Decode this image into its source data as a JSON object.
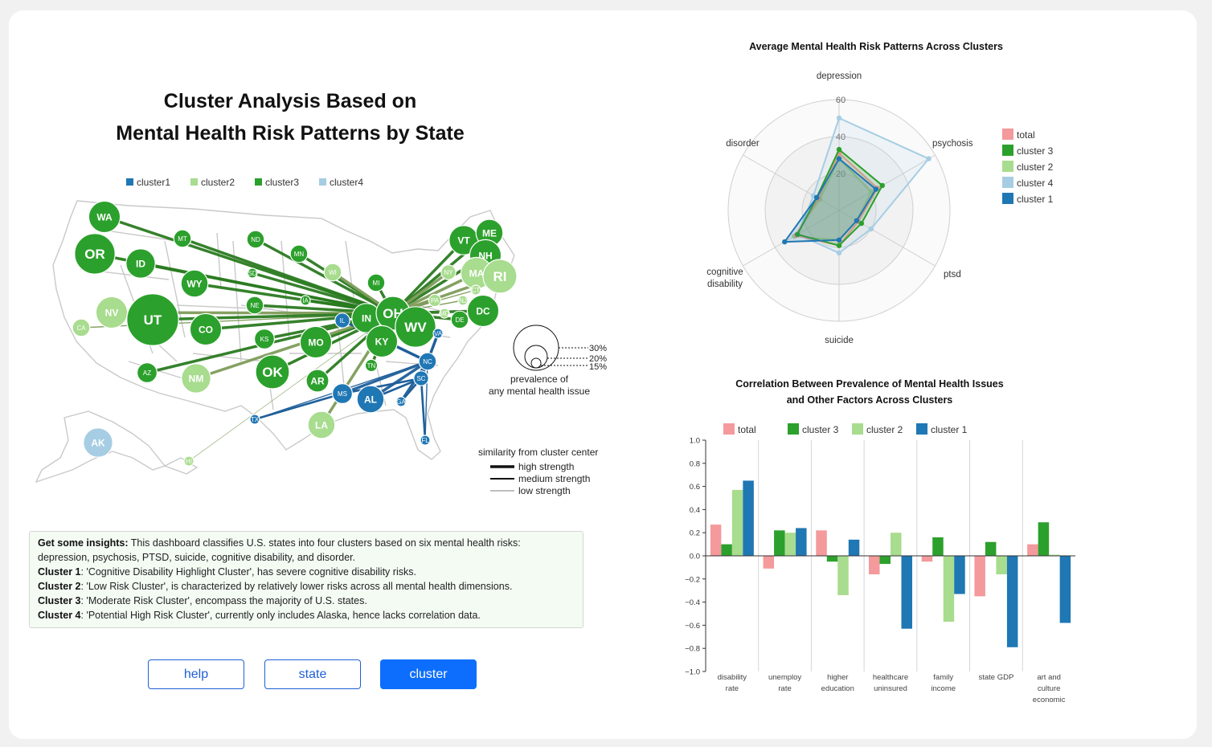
{
  "colors": {
    "cluster1": "#1f77b4",
    "cluster2": "#a8dc8e",
    "cluster3": "#2ca02c",
    "cluster4": "#a6cde3",
    "total": "#f4999c",
    "link_cluster1": "#1f5f9a",
    "link_cluster2": "#7e9c5a",
    "link_cluster3": "#2a7a20"
  },
  "map": {
    "title_line1": "Cluster Analysis Based on",
    "title_line2": "Mental Health Risk Patterns by State",
    "legend": [
      {
        "label": "cluster1",
        "cluster": "1"
      },
      {
        "label": "cluster2",
        "cluster": "2"
      },
      {
        "label": "cluster3",
        "cluster": "3"
      },
      {
        "label": "cluster4",
        "cluster": "4"
      }
    ],
    "states": [
      {
        "abbr": "WA",
        "cluster": "3",
        "prev": 24
      },
      {
        "abbr": "OR",
        "cluster": "3",
        "prev": 28
      },
      {
        "abbr": "ID",
        "cluster": "3",
        "prev": 23
      },
      {
        "abbr": "MT",
        "cluster": "3",
        "prev": 18
      },
      {
        "abbr": "WY",
        "cluster": "3",
        "prev": 22
      },
      {
        "abbr": "ND",
        "cluster": "3",
        "prev": 18
      },
      {
        "abbr": "SD",
        "cluster": "3",
        "prev": 13
      },
      {
        "abbr": "MN",
        "cluster": "3",
        "prev": 18
      },
      {
        "abbr": "NE",
        "cluster": "3",
        "prev": 18
      },
      {
        "abbr": "IA",
        "cluster": "3",
        "prev": 14
      },
      {
        "abbr": "WI",
        "cluster": "2",
        "prev": 18
      },
      {
        "abbr": "MI",
        "cluster": "3",
        "prev": 18
      },
      {
        "abbr": "IL",
        "cluster": "1",
        "prev": 17
      },
      {
        "abbr": "IN",
        "cluster": "3",
        "prev": 23
      },
      {
        "abbr": "OH",
        "cluster": "3",
        "prev": 25
      },
      {
        "abbr": "NV",
        "cluster": "2",
        "prev": 24
      },
      {
        "abbr": "CA",
        "cluster": "2",
        "prev": 18
      },
      {
        "abbr": "UT",
        "cluster": "3",
        "prev": 33
      },
      {
        "abbr": "CO",
        "cluster": "3",
        "prev": 24
      },
      {
        "abbr": "KS",
        "cluster": "3",
        "prev": 19
      },
      {
        "abbr": "MO",
        "cluster": "3",
        "prev": 24
      },
      {
        "abbr": "KY",
        "cluster": "3",
        "prev": 24
      },
      {
        "abbr": "WV",
        "cluster": "3",
        "prev": 28
      },
      {
        "abbr": "VA",
        "cluster": "1",
        "prev": 15
      },
      {
        "abbr": "AZ",
        "cluster": "3",
        "prev": 19
      },
      {
        "abbr": "NM",
        "cluster": "2",
        "prev": 23
      },
      {
        "abbr": "OK",
        "cluster": "3",
        "prev": 25
      },
      {
        "abbr": "AR",
        "cluster": "3",
        "prev": 20
      },
      {
        "abbr": "TN",
        "cluster": "3",
        "prev": 16
      },
      {
        "abbr": "NC",
        "cluster": "1",
        "prev": 18
      },
      {
        "abbr": "SC",
        "cluster": "1",
        "prev": 17
      },
      {
        "abbr": "MS",
        "cluster": "1",
        "prev": 19
      },
      {
        "abbr": "AL",
        "cluster": "1",
        "prev": 22
      },
      {
        "abbr": "GA",
        "cluster": "1",
        "prev": 15
      },
      {
        "abbr": "FL",
        "cluster": "1",
        "prev": 14
      },
      {
        "abbr": "TX",
        "cluster": "1",
        "prev": 13
      },
      {
        "abbr": "LA",
        "cluster": "2",
        "prev": 22
      },
      {
        "abbr": "AK",
        "cluster": "4",
        "prev": 23
      },
      {
        "abbr": "HI",
        "cluster": "2",
        "prev": 14
      },
      {
        "abbr": "VT",
        "cluster": "3",
        "prev": 23
      },
      {
        "abbr": "ME",
        "cluster": "3",
        "prev": 22
      },
      {
        "abbr": "NH",
        "cluster": "3",
        "prev": 24
      },
      {
        "abbr": "MA",
        "cluster": "2",
        "prev": 24
      },
      {
        "abbr": "RI",
        "cluster": "2",
        "prev": 25
      },
      {
        "abbr": "CT",
        "cluster": "2",
        "prev": 15
      },
      {
        "abbr": "NY",
        "cluster": "2",
        "prev": 17
      },
      {
        "abbr": "NJ",
        "cluster": "2",
        "prev": 12
      },
      {
        "abbr": "PA",
        "cluster": "2",
        "prev": 16
      },
      {
        "abbr": "MD",
        "cluster": "2",
        "prev": 12
      },
      {
        "abbr": "DE",
        "cluster": "3",
        "prev": 18
      },
      {
        "abbr": "DC",
        "cluster": "3",
        "prev": 24
      }
    ],
    "size_legend": {
      "values": [
        "30%",
        "20%",
        "15%"
      ],
      "caption_line1": "prevalence of",
      "caption_line2": "any mental health issue"
    },
    "strength_legend": {
      "title": "similarity from cluster center",
      "items": [
        "high strength",
        "medium strength",
        "low strength"
      ]
    }
  },
  "insights": {
    "lead": "Get some insights:",
    "intro": " This dashboard classifies U.S. states into four clusters based on six mental health risks: depression, psychosis, PTSD, suicide, cognitive disability, and disorder.",
    "clusters": [
      {
        "name": "Cluster 1",
        "text": ": 'Cognitive Disability Highlight Cluster', has severe cognitive disability risks."
      },
      {
        "name": "Cluster 2",
        "text": ": 'Low Risk Cluster', is characterized by relatively lower risks across all mental health dimensions."
      },
      {
        "name": "Cluster 3",
        "text": ": 'Moderate Risk Cluster', encompass the majority of U.S. states."
      },
      {
        "name": "Cluster 4",
        "text": ": 'Potential High Risk Cluster', currently only includes Alaska, hence lacks correlation data."
      }
    ]
  },
  "buttons": {
    "help": "help",
    "state": "state",
    "cluster": "cluster"
  },
  "chart_data": [
    {
      "type": "radar",
      "title": "Average Mental Health Risk Patterns Across Clusters",
      "axes": [
        "depression",
        "psychosis",
        "ptsd",
        "suicide",
        "cognitive disability",
        "disorder"
      ],
      "ticks": [
        "20",
        "40",
        "60"
      ],
      "rmax": 60,
      "legend": [
        "total",
        "cluster 3",
        "cluster 2",
        "cluster 4",
        "cluster 1"
      ],
      "series": [
        {
          "name": "cluster 4",
          "key": "cluster4",
          "values": [
            50,
            56,
            20,
            23,
            26,
            16
          ]
        },
        {
          "name": "cluster 2",
          "key": "cluster2",
          "values": [
            28,
            20,
            11,
            16,
            28,
            12
          ]
        },
        {
          "name": "total",
          "key": "total",
          "values": [
            31,
            24,
            12,
            19,
            27,
            13
          ]
        },
        {
          "name": "cluster 3",
          "key": "cluster3",
          "values": [
            33,
            27,
            14,
            19,
            26,
            14
          ]
        },
        {
          "name": "cluster 1",
          "key": "cluster1",
          "values": [
            28,
            23,
            11,
            16,
            34,
            14
          ]
        }
      ]
    },
    {
      "type": "bar",
      "title_line1": "Correlation Between Prevalence of Mental Health Issues",
      "title_line2": "and Other Factors Across Clusters",
      "categories": [
        [
          "disability",
          "rate"
        ],
        [
          "unemploy",
          "rate"
        ],
        [
          "higher",
          "education"
        ],
        [
          "healthcare",
          "uninsured"
        ],
        [
          "family",
          "income"
        ],
        [
          "state GDP"
        ],
        [
          "art and",
          "culture",
          "economic"
        ]
      ],
      "ylim": [
        -1.0,
        1.0
      ],
      "yticks": [
        "1.0",
        "0.8",
        "0.6",
        "0.4",
        "0.2",
        "0.0",
        "−0.2",
        "−0.4",
        "−0.6",
        "−0.8",
        "−1.0"
      ],
      "legend": [
        "total",
        "cluster 3",
        "cluster 2",
        "cluster 1"
      ],
      "series": [
        {
          "name": "total",
          "key": "total",
          "values": [
            0.27,
            -0.11,
            0.22,
            -0.16,
            -0.05,
            -0.35,
            0.1
          ]
        },
        {
          "name": "cluster 3",
          "key": "cluster3",
          "values": [
            0.1,
            0.22,
            -0.05,
            -0.07,
            0.16,
            0.12,
            0.29
          ]
        },
        {
          "name": "cluster 2",
          "key": "cluster2",
          "values": [
            0.57,
            0.2,
            -0.34,
            0.2,
            -0.57,
            -0.16,
            0.01
          ]
        },
        {
          "name": "cluster 1",
          "key": "cluster1",
          "values": [
            0.65,
            0.24,
            0.14,
            -0.63,
            -0.33,
            -0.79,
            -0.58
          ]
        }
      ]
    }
  ]
}
